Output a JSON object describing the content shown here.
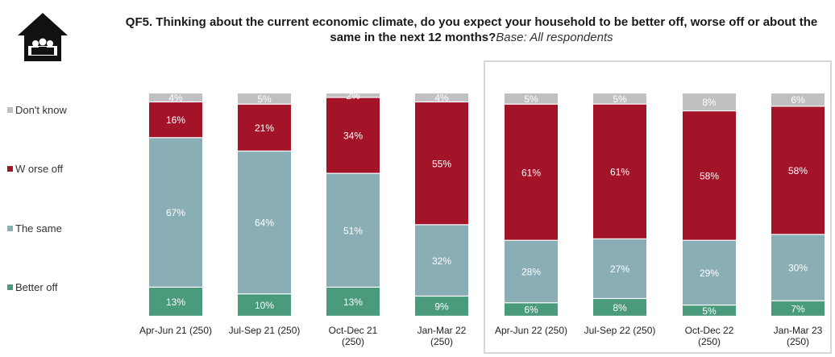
{
  "title": {
    "question": "QF5. Thinking about the current economic climate, do you expect your household to be better off, worse off or about the same in the next 12 months?",
    "base": "Base: All respondents"
  },
  "colors": {
    "better_off": "#4a9a7c",
    "the_same": "#8aaeb6",
    "worse_off": "#a31429",
    "dont_know": "#c0c0c0",
    "icon": "#111111"
  },
  "icon": "house-icon",
  "legend": [
    {
      "key": "dont_know",
      "label": "Don't know"
    },
    {
      "key": "worse_off",
      "label": "W orse off"
    },
    {
      "key": "the_same",
      "label": "The same"
    },
    {
      "key": "better_off",
      "label": "Better off"
    }
  ],
  "chart_data": {
    "type": "bar",
    "stacked": true,
    "categories": [
      [
        "Apr-Jun 21 (250)"
      ],
      [
        "Jul-Sep 21 (250)"
      ],
      [
        "Oct-Dec 21",
        "(250)"
      ],
      [
        "Jan-Mar 22",
        "(250)"
      ],
      [
        "Apr-Jun 22 (250)"
      ],
      [
        "Jul-Sep 22 (250)"
      ],
      [
        "Oct-Dec 22",
        "(250)"
      ],
      [
        "Jan-Mar 23",
        "(250)"
      ]
    ],
    "series": [
      {
        "name": "Better off",
        "key": "better_off",
        "values": [
          13,
          10,
          13,
          9,
          6,
          8,
          5,
          7
        ]
      },
      {
        "name": "The same",
        "key": "the_same",
        "values": [
          67,
          64,
          51,
          32,
          28,
          27,
          29,
          30
        ]
      },
      {
        "name": "Worse off",
        "key": "worse_off",
        "values": [
          16,
          21,
          34,
          55,
          61,
          61,
          58,
          58
        ]
      },
      {
        "name": "Don't know",
        "key": "dont_know",
        "values": [
          4,
          5,
          2,
          4,
          5,
          5,
          8,
          6
        ]
      }
    ],
    "ylim": [
      0,
      100
    ],
    "grid": false,
    "legend_position": "left",
    "value_suffix": "%"
  }
}
